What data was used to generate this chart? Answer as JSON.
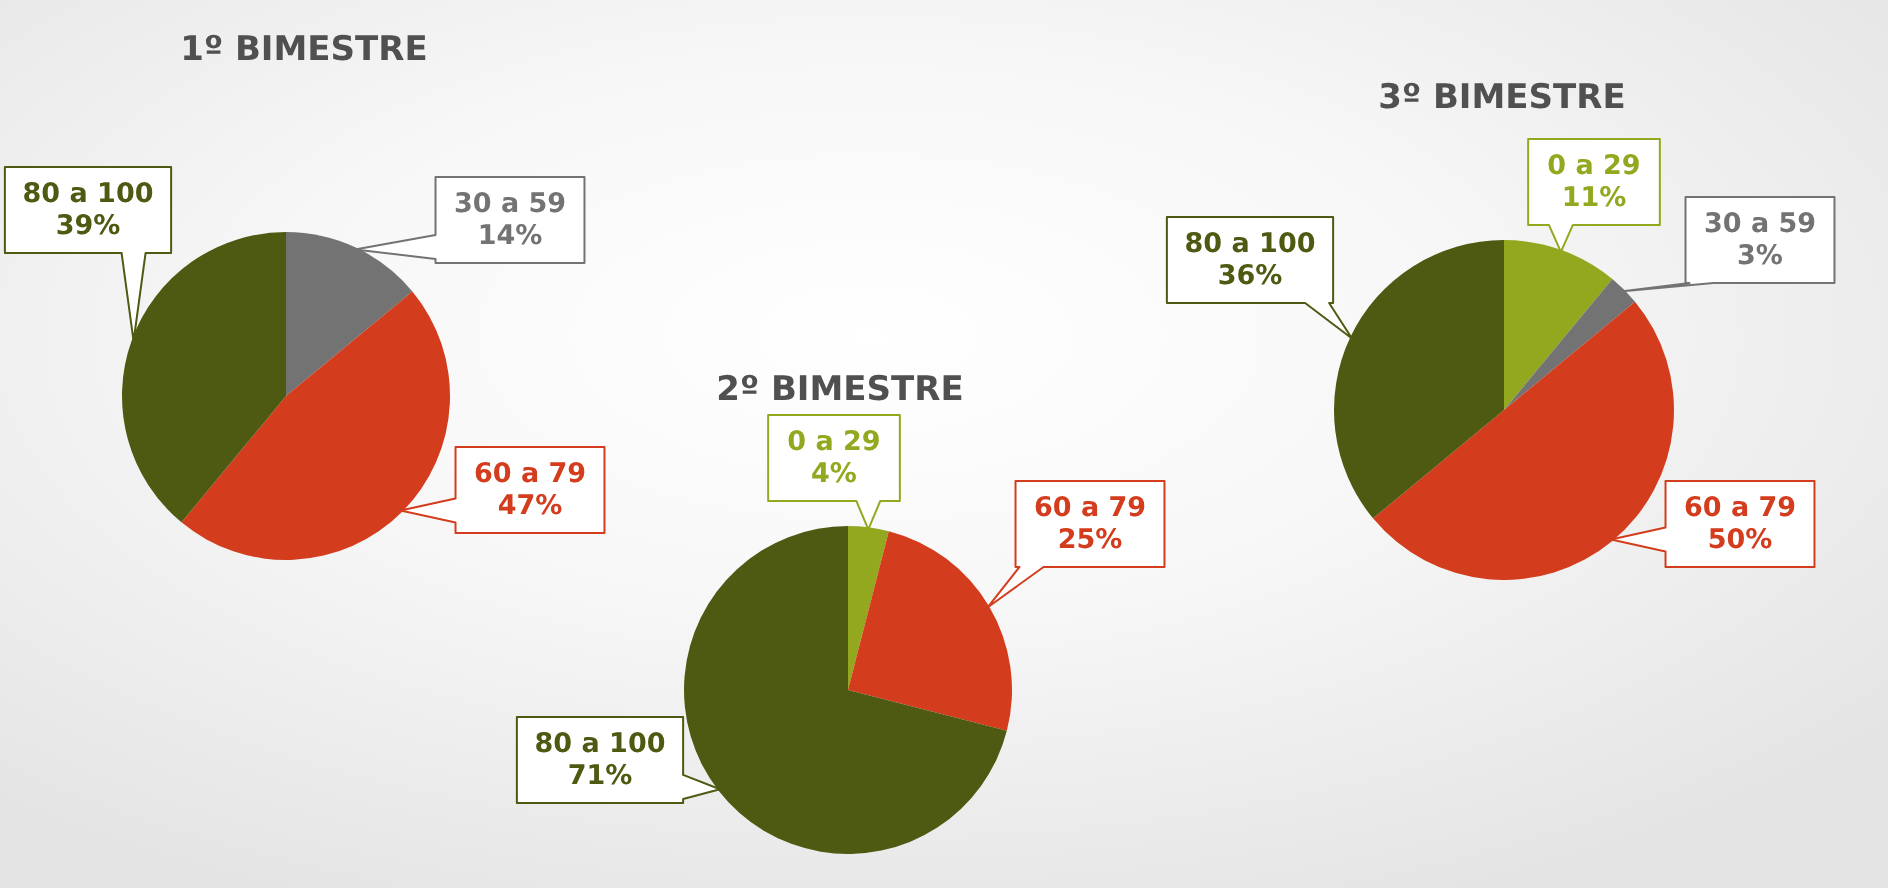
{
  "chart_data": [
    {
      "type": "pie",
      "title": "1º BIMESTRE",
      "categories": [
        "30 a 59",
        "60 a 79",
        "80 a 100"
      ],
      "values": [
        14,
        47,
        39
      ],
      "colors": [
        "#737373",
        "#d33c1c",
        "#4e5a11"
      ],
      "value_labels": [
        "14%",
        "47%",
        "39%"
      ]
    },
    {
      "type": "pie",
      "title": "2º BIMESTRE",
      "categories": [
        "0 a 29",
        "60 a 79",
        "80 a 100"
      ],
      "values": [
        4,
        25,
        71
      ],
      "colors": [
        "#93a81f",
        "#d33c1c",
        "#4e5a11"
      ],
      "value_labels": [
        "4%",
        "25%",
        "71%"
      ]
    },
    {
      "type": "pie",
      "title": "3º BIMESTRE",
      "categories": [
        "0 a 29",
        "30 a 59",
        "60 a 79",
        "80 a 100"
      ],
      "values": [
        11,
        3,
        50,
        36
      ],
      "colors": [
        "#93a81f",
        "#737373",
        "#d33c1c",
        "#4e5a11"
      ],
      "value_labels": [
        "11%",
        "3%",
        "50%",
        "36%"
      ]
    }
  ]
}
